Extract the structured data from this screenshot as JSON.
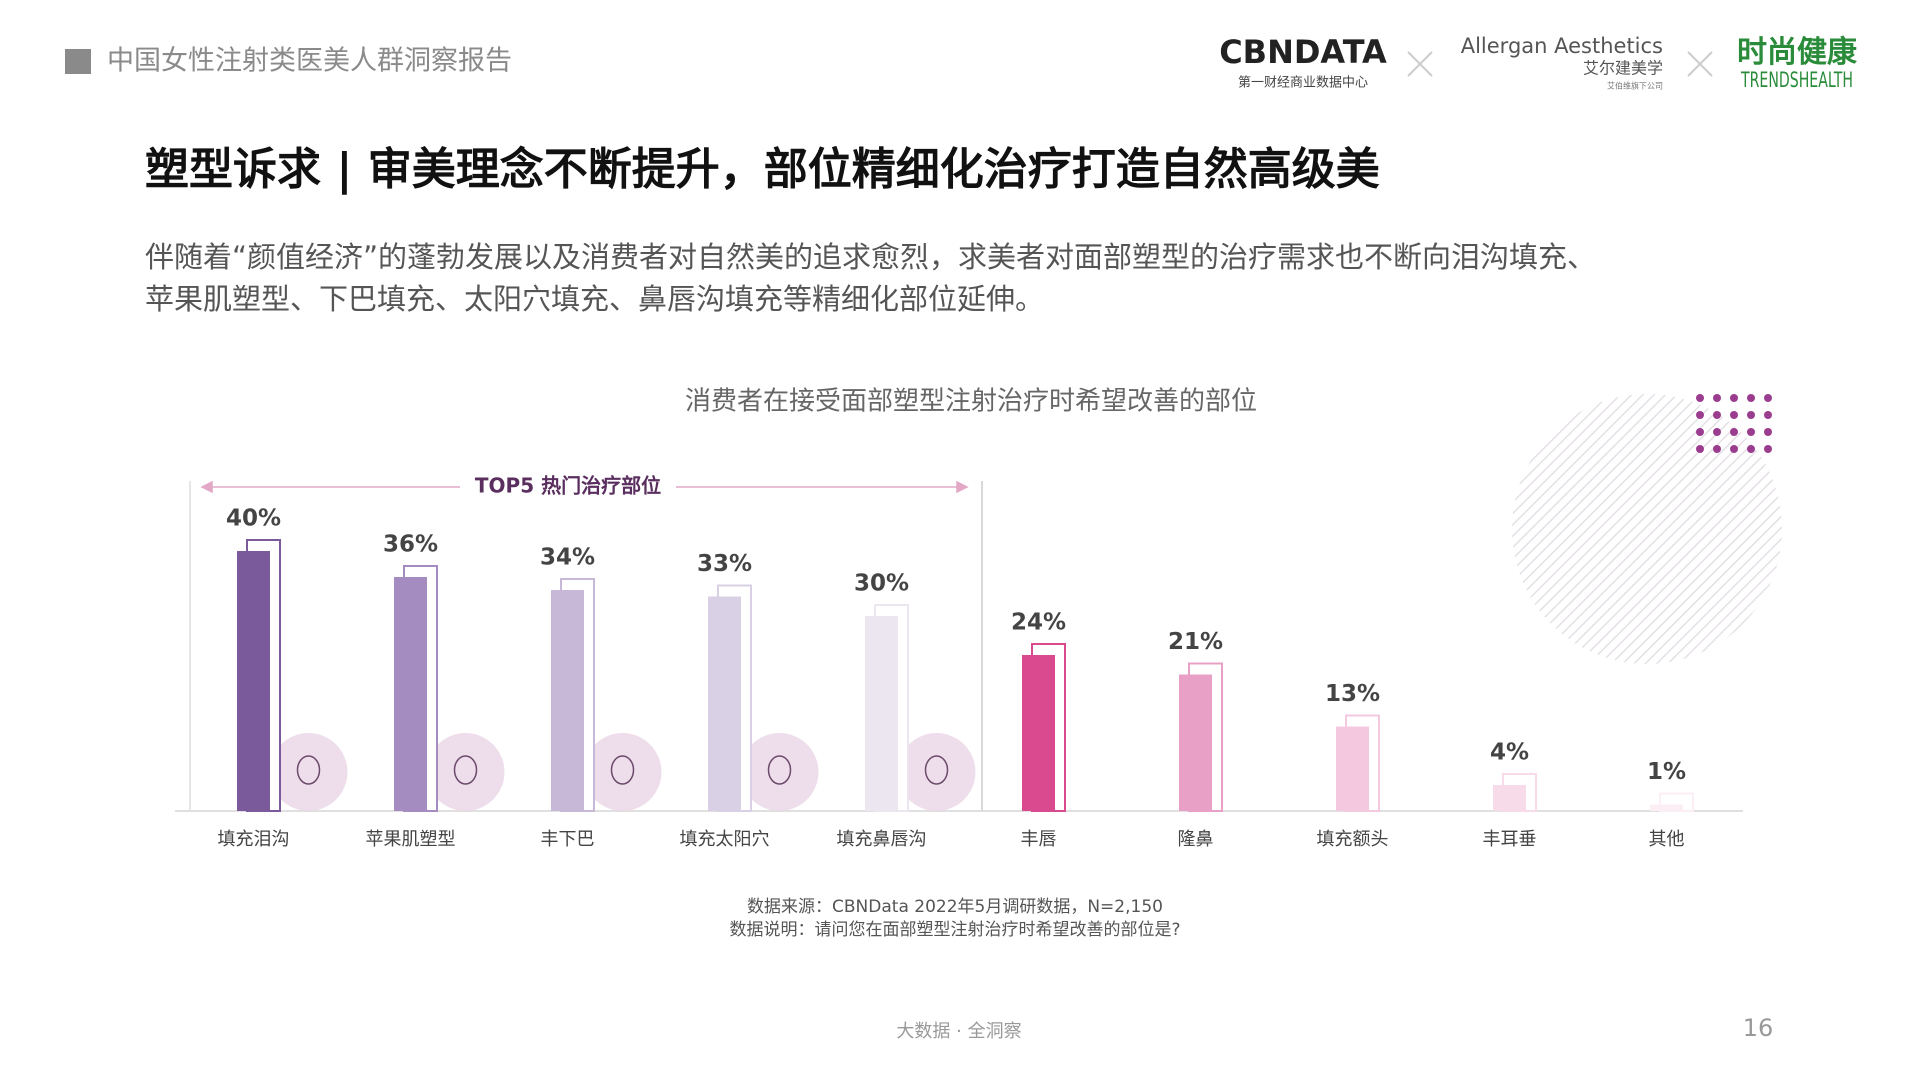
{
  "header": {
    "report_title": "中国女性注射类医美人群洞察报告",
    "logo_cbn": "CBNDATA",
    "logo_cbn_sub": "第一财经商业数据中心",
    "logo_allergan": "Allergan Aesthetics",
    "logo_allergan_cn": "艾尔建美学",
    "logo_allergan_sub": "艾伯维旗下公司",
    "logo_trends_cn": "时尚健康",
    "logo_trends_en": "TRENDSHEALTH"
  },
  "headline": "塑型诉求 | 审美理念不断提升，部位精细化治疗打造自然高级美",
  "paragraph": [
    "伴随着“颜值经济”的蓬勃发展以及消费者对自然美的追求愈烈，求美者对面部塑型的治疗需求也不断向泪沟填充、",
    "苹果肌塑型、下巴填充、太阳穴填充、鼻唇沟填充等精细化部位延伸。"
  ],
  "chart_data": {
    "type": "bar",
    "title": "消费者在接受面部塑型注射治疗时希望改善的部位",
    "annotation": "TOP5 热门治疗部位",
    "categories": [
      "填充泪沟",
      "苹果肌塑型",
      "丰下巴",
      "填充太阳穴",
      "填充鼻唇沟",
      "丰唇",
      "隆鼻",
      "填充额头",
      "丰耳垂",
      "其他"
    ],
    "values": [
      40,
      36,
      34,
      33,
      30,
      24,
      21,
      13,
      4,
      1
    ],
    "value_labels": [
      "40%",
      "36%",
      "34%",
      "33%",
      "30%",
      "24%",
      "21%",
      "13%",
      "4%",
      "1%"
    ],
    "colors": [
      "#7a5a9a",
      "#a48cc0",
      "#c7b8d8",
      "#d9d0e6",
      "#ebe6f0",
      "#d94a8f",
      "#e9a0c6",
      "#f4c9df",
      "#f8dbe9",
      "#fbeef4"
    ],
    "notes": [
      "数据来源：CBNData 2022年5月调研数据，N=2,150",
      "数据说明：请问您在面部塑型注射治疗时希望改善的部位是?"
    ]
  },
  "footer": {
    "slogan": "大数据 · 全洞察",
    "page_number": "16"
  }
}
